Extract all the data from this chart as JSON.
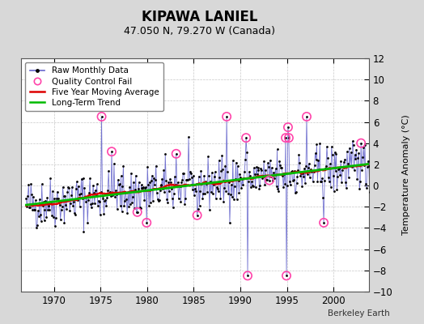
{
  "title": "KIPAWA LANIEL",
  "subtitle": "47.050 N, 79.270 W (Canada)",
  "ylabel": "Temperature Anomaly (°C)",
  "watermark": "Berkeley Earth",
  "xlim": [
    1966.5,
    2003.8
  ],
  "ylim": [
    -10,
    12
  ],
  "yticks": [
    -10,
    -8,
    -6,
    -4,
    -2,
    0,
    2,
    4,
    6,
    8,
    10,
    12
  ],
  "xticks": [
    1970,
    1975,
    1980,
    1985,
    1990,
    1995,
    2000
  ],
  "outer_bg": "#d8d8d8",
  "plot_bg": "#ffffff",
  "grid_color": "#c8c8c8",
  "line_color": "#6666cc",
  "dot_color": "#000000",
  "ma_color": "#dd0000",
  "trend_color": "#00bb00",
  "qc_color": "#ff44aa",
  "title_fontsize": 12,
  "subtitle_fontsize": 9,
  "label_fontsize": 8,
  "tick_fontsize": 8.5,
  "legend_fontsize": 7.5
}
